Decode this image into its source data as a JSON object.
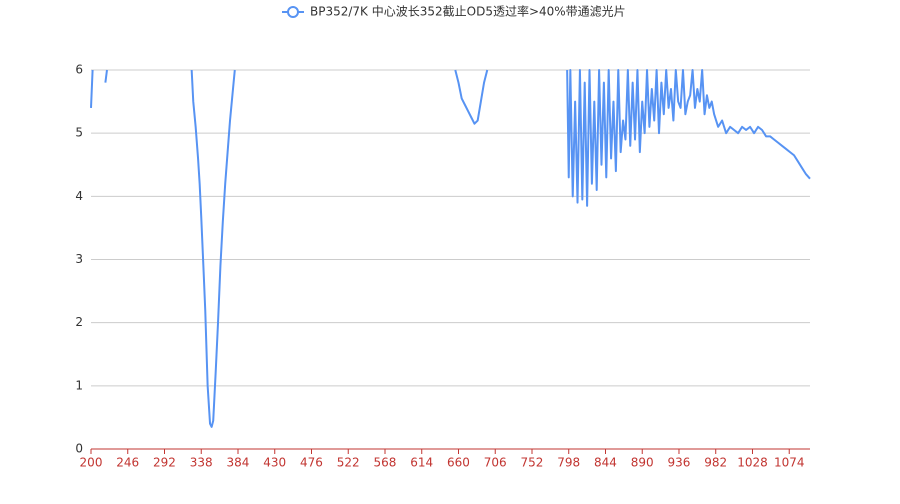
{
  "chart_data": {
    "type": "line",
    "x": [
      200,
      202,
      205,
      218,
      220,
      222,
      326,
      328,
      331,
      334,
      336,
      338,
      341,
      343,
      346,
      349,
      351,
      353,
      356,
      359,
      362,
      365,
      368,
      371,
      374,
      377,
      380,
      383,
      656,
      660,
      664,
      668,
      672,
      676,
      680,
      684,
      688,
      692,
      696,
      698,
      796,
      798,
      800,
      803,
      806,
      809,
      812,
      815,
      818,
      821,
      824,
      827,
      830,
      833,
      836,
      839,
      842,
      845,
      848,
      851,
      854,
      857,
      860,
      863,
      866,
      869,
      872,
      875,
      878,
      881,
      884,
      887,
      890,
      893,
      896,
      899,
      902,
      905,
      908,
      911,
      914,
      917,
      920,
      923,
      926,
      929,
      932,
      935,
      938,
      941,
      944,
      947,
      950,
      953,
      956,
      959,
      962,
      965,
      968,
      971,
      974,
      977,
      980,
      985,
      990,
      995,
      1000,
      1005,
      1010,
      1015,
      1020,
      1025,
      1030,
      1035,
      1040,
      1045,
      1050,
      1055,
      1060,
      1065,
      1070,
      1075,
      1080,
      1085,
      1090,
      1095,
      1100
    ],
    "series": [
      {
        "name": "BP352/7K 中心波长352截止OD5透过率>40%带通滤光片",
        "color": "#5793f3",
        "values": [
          5.4,
          6,
          null,
          5.8,
          6,
          null,
          6,
          5.5,
          5.1,
          4.6,
          4.2,
          3.67,
          2.8,
          2.2,
          1.0,
          0.4,
          0.35,
          0.45,
          1.2,
          2.0,
          2.9,
          3.6,
          4.2,
          4.7,
          5.2,
          5.6,
          6,
          null,
          6,
          5.8,
          5.55,
          5.45,
          5.35,
          5.25,
          5.15,
          5.2,
          5.5,
          5.8,
          6,
          null,
          6,
          4.3,
          6,
          4.0,
          5.5,
          3.9,
          6,
          3.95,
          5.8,
          3.85,
          6,
          4.2,
          5.5,
          4.1,
          6,
          4.5,
          5.8,
          4.3,
          6,
          4.6,
          5.5,
          4.4,
          6,
          4.7,
          5.2,
          4.9,
          6,
          4.8,
          5.8,
          4.9,
          6,
          4.7,
          5.5,
          5.0,
          6,
          5.1,
          5.7,
          5.2,
          6,
          5.0,
          5.8,
          5.3,
          6,
          5.4,
          5.7,
          5.2,
          6,
          5.5,
          5.4,
          6,
          5.3,
          5.5,
          5.6,
          6,
          5.4,
          5.7,
          5.5,
          6,
          5.3,
          5.6,
          5.4,
          5.5,
          5.3,
          5.1,
          5.2,
          5.0,
          5.1,
          5.05,
          5.0,
          5.1,
          5.05,
          5.1,
          5.0,
          5.1,
          5.05,
          4.95,
          4.95,
          4.9,
          4.85,
          4.8,
          4.75,
          4.7,
          4.65,
          4.55,
          4.45,
          4.35,
          4.28
        ]
      }
    ],
    "xlim": [
      200,
      1100
    ],
    "xticks": [
      200,
      246,
      292,
      338,
      384,
      430,
      476,
      522,
      568,
      614,
      660,
      706,
      752,
      798,
      844,
      890,
      936,
      982,
      1028,
      1074
    ],
    "ylim": [
      0,
      6
    ],
    "yticks": [
      0,
      1,
      2,
      3,
      4,
      5,
      6
    ],
    "grid": true
  }
}
